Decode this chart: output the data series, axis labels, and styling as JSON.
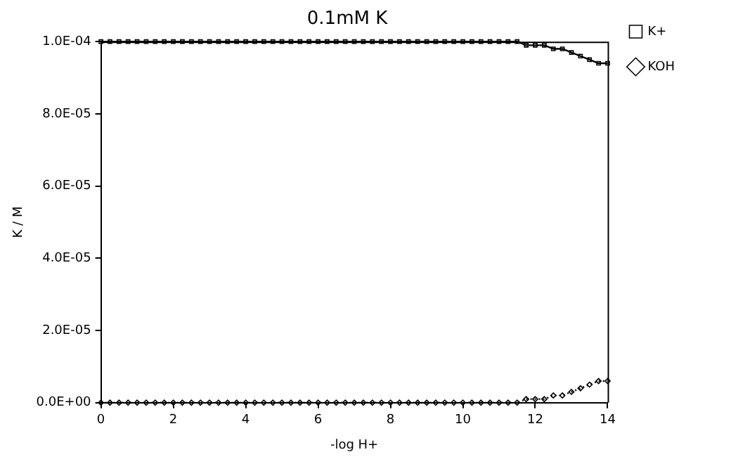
{
  "chart_data": {
    "type": "line",
    "title": "0.1mM K",
    "xlabel": "-log H+",
    "ylabel": "K / M",
    "x": [
      0,
      0.25,
      0.5,
      0.75,
      1,
      1.25,
      1.5,
      1.75,
      2,
      2.25,
      2.5,
      2.75,
      3,
      3.25,
      3.5,
      3.75,
      4,
      4.25,
      4.5,
      4.75,
      5,
      5.25,
      5.5,
      5.75,
      6,
      6.25,
      6.5,
      6.75,
      7,
      7.25,
      7.5,
      7.75,
      8,
      8.25,
      8.5,
      8.75,
      9,
      9.25,
      9.5,
      9.75,
      10,
      10.25,
      10.5,
      10.75,
      11,
      11.25,
      11.5,
      11.75,
      12,
      12.25,
      12.5,
      12.75,
      13,
      13.25,
      13.5,
      13.75,
      14
    ],
    "series": [
      {
        "name": "K+",
        "color": "#000000",
        "marker": "square",
        "line_style": "solid",
        "values": [
          0.0001,
          0.0001,
          0.0001,
          0.0001,
          0.0001,
          0.0001,
          0.0001,
          0.0001,
          0.0001,
          0.0001,
          0.0001,
          0.0001,
          0.0001,
          0.0001,
          0.0001,
          0.0001,
          0.0001,
          0.0001,
          0.0001,
          0.0001,
          0.0001,
          0.0001,
          0.0001,
          0.0001,
          0.0001,
          0.0001,
          0.0001,
          0.0001,
          0.0001,
          0.0001,
          0.0001,
          0.0001,
          0.0001,
          0.0001,
          0.0001,
          0.0001,
          0.0001,
          0.0001,
          0.0001,
          0.0001,
          0.0001,
          0.0001,
          0.0001,
          0.0001,
          0.0001,
          0.0001,
          0.0001,
          9.9e-05,
          9.9e-05,
          9.9e-05,
          9.8e-05,
          9.8e-05,
          9.7e-05,
          9.6e-05,
          9.5e-05,
          9.4e-05,
          9.4e-05
        ]
      },
      {
        "name": "KOH",
        "color": "#000000",
        "marker": "diamond",
        "line_style": "dotted",
        "values": [
          0,
          0,
          0,
          0,
          0,
          0,
          0,
          0,
          0,
          0,
          0,
          0,
          0,
          0,
          0,
          0,
          0,
          0,
          0,
          0,
          0,
          0,
          0,
          0,
          0,
          0,
          0,
          0,
          0,
          0,
          0,
          0,
          0,
          0,
          0,
          0,
          0,
          0,
          0,
          0,
          0,
          0,
          0,
          0,
          0,
          0,
          0,
          1e-06,
          1e-06,
          1e-06,
          2e-06,
          2e-06,
          3e-06,
          4e-06,
          5e-06,
          6e-06,
          6e-06
        ]
      }
    ],
    "xlim": [
      0,
      14
    ],
    "xticks": [
      0,
      2,
      4,
      6,
      8,
      10,
      12,
      14
    ],
    "ylim": [
      0,
      0.0001
    ],
    "yticks": [
      {
        "value": 0,
        "label": "0.0E+00"
      },
      {
        "value": 2e-05,
        "label": "2.0E-05"
      },
      {
        "value": 4e-05,
        "label": "4.0E-05"
      },
      {
        "value": 6e-05,
        "label": "6.0E-05"
      },
      {
        "value": 8e-05,
        "label": "8.0E-05"
      },
      {
        "value": 0.0001,
        "label": "1.0E-04"
      }
    ],
    "grid": false,
    "legend": "top right"
  }
}
